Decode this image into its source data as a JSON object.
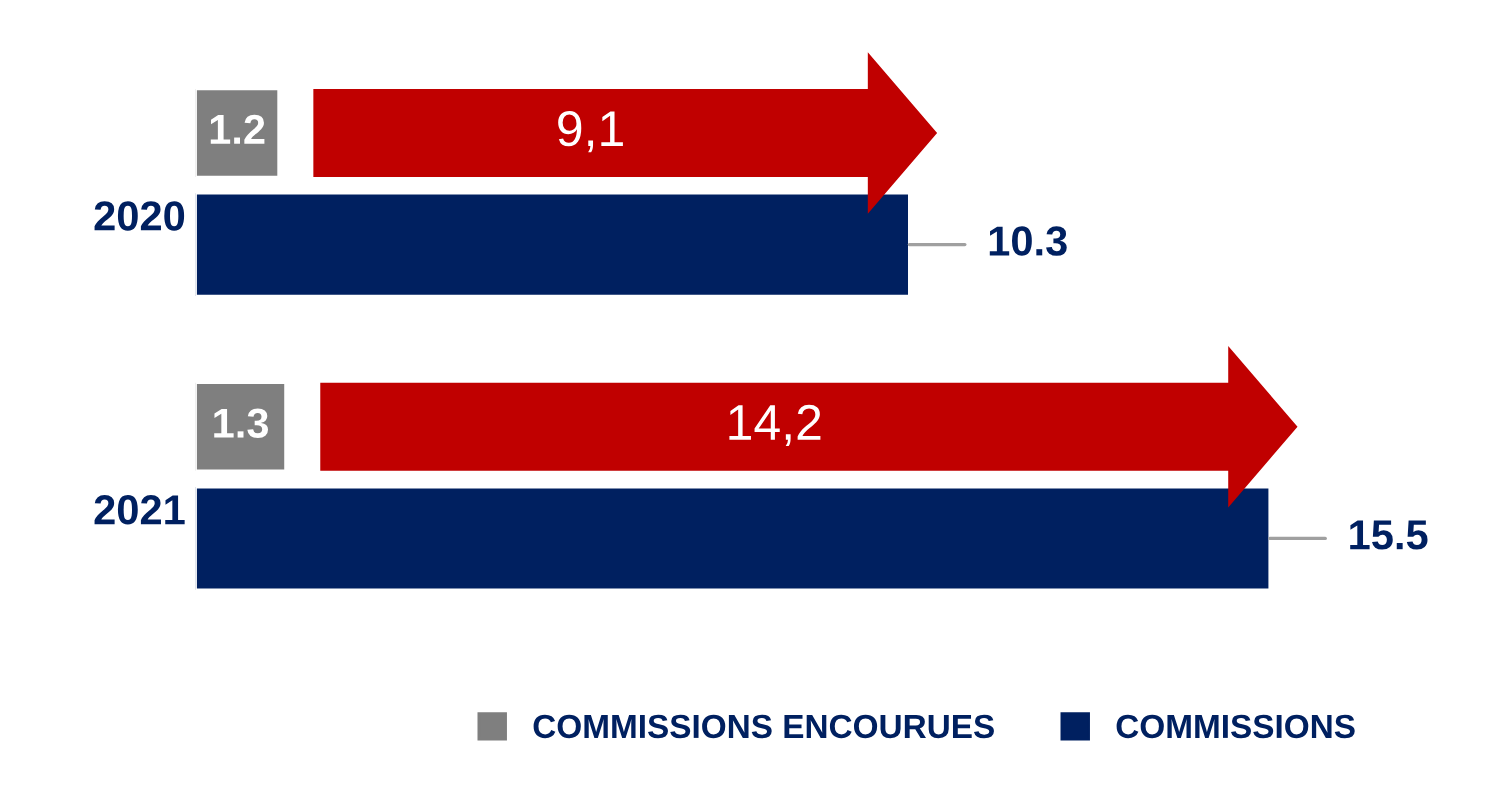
{
  "chart_data": {
    "type": "bar",
    "orientation": "horizontal",
    "categories": [
      "2020",
      "2021"
    ],
    "series": [
      {
        "name": "COMMISSIONS ENCOURUES",
        "color": "#7f7f7f",
        "values": [
          1.2,
          1.3
        ]
      },
      {
        "name": "COMMISSIONS",
        "color": "#002060",
        "values": [
          10.3,
          15.5
        ]
      }
    ],
    "data_labels": true,
    "tick_labels": "y",
    "legend": "bottom",
    "grid": false,
    "annotations": [
      "9,1",
      "14,2"
    ]
  }
}
